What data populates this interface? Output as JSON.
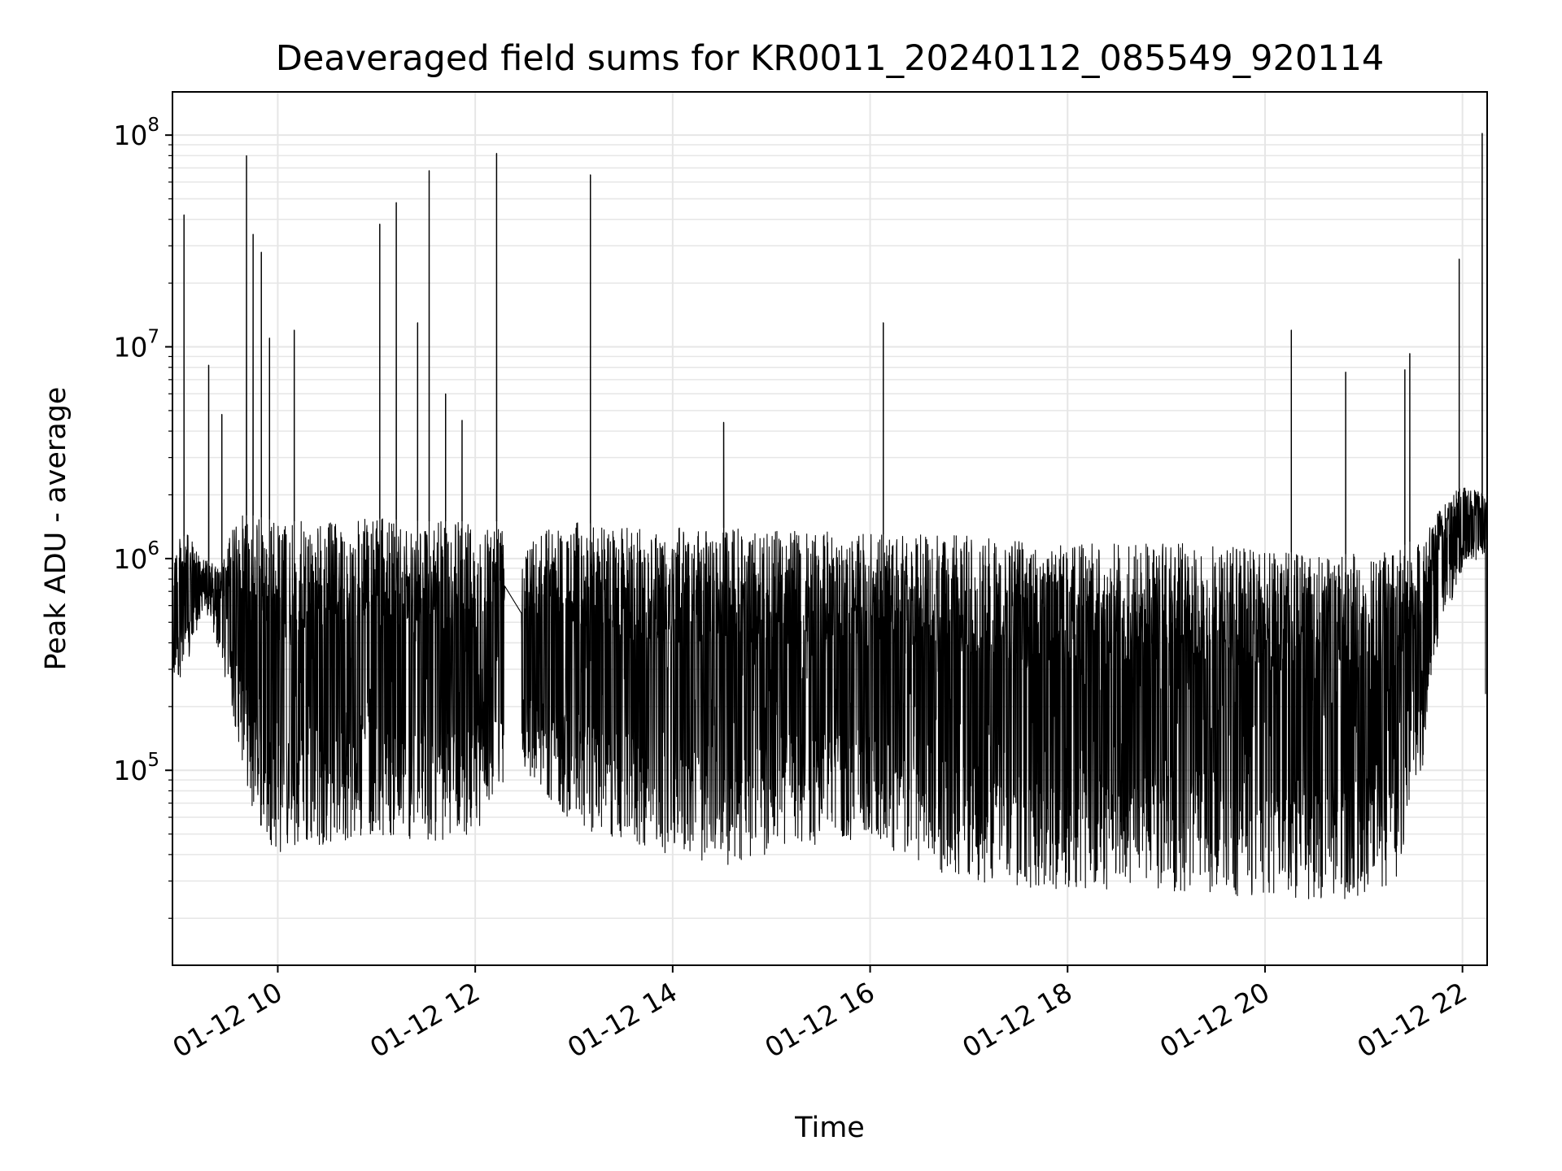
{
  "chart_data": {
    "type": "line",
    "title": "Deaveraged field sums for KR0011_20240112_085549_920114",
    "xlabel": "Time",
    "ylabel": "Peak ADU - average",
    "y_scale": "log",
    "ylim": [
      12000,
      160000000
    ],
    "x_domain": [
      "2024-01-12T08:56",
      "2024-01-12T22:15"
    ],
    "x_ticks": [
      {
        "t": "2024-01-12T10:00",
        "label": "01-12 10"
      },
      {
        "t": "2024-01-12T12:00",
        "label": "01-12 12"
      },
      {
        "t": "2024-01-12T14:00",
        "label": "01-12 14"
      },
      {
        "t": "2024-01-12T16:00",
        "label": "01-12 16"
      },
      {
        "t": "2024-01-12T18:00",
        "label": "01-12 18"
      },
      {
        "t": "2024-01-12T20:00",
        "label": "01-12 20"
      },
      {
        "t": "2024-01-12T22:00",
        "label": "01-12 22"
      }
    ],
    "y_ticks": [
      {
        "value": 100000,
        "base": "10",
        "exp": "5"
      },
      {
        "value": 1000000,
        "base": "10",
        "exp": "6"
      },
      {
        "value": 10000000,
        "base": "10",
        "exp": "7"
      },
      {
        "value": 100000000,
        "base": "10",
        "exp": "8"
      }
    ],
    "grid": true,
    "line_color": "#000000",
    "grid_color": "#e6e6e6",
    "envelope": [
      {
        "t": "2024-01-12T08:56",
        "low": 250000,
        "high": 1200000
      },
      {
        "t": "2024-01-12T09:05",
        "low": 300000,
        "high": 1300000
      },
      {
        "t": "2024-01-12T09:15",
        "low": 600000,
        "high": 1000000
      },
      {
        "t": "2024-01-12T09:25",
        "low": 350000,
        "high": 900000
      },
      {
        "t": "2024-01-12T09:35",
        "low": 150000,
        "high": 1600000
      },
      {
        "t": "2024-01-12T09:45",
        "low": 60000,
        "high": 1600000
      },
      {
        "t": "2024-01-12T10:00",
        "low": 40000,
        "high": 1500000
      },
      {
        "t": "2024-01-12T10:30",
        "low": 45000,
        "high": 1500000
      },
      {
        "t": "2024-01-12T11:00",
        "low": 50000,
        "high": 1550000
      },
      {
        "t": "2024-01-12T11:30",
        "low": 45000,
        "high": 1500000
      },
      {
        "t": "2024-01-12T12:00",
        "low": 50000,
        "high": 1500000
      },
      {
        "t": "2024-01-12T12:18",
        "low": 90000,
        "high": 1500000
      },
      {
        "t": "2024-01-12T12:30",
        "low": 100000,
        "high": 1400000
      },
      {
        "t": "2024-01-12T13:00",
        "low": 55000,
        "high": 1500000
      },
      {
        "t": "2024-01-12T13:30",
        "low": 45000,
        "high": 1400000
      },
      {
        "t": "2024-01-12T14:00",
        "low": 40000,
        "high": 1400000
      },
      {
        "t": "2024-01-12T14:30",
        "low": 35000,
        "high": 1400000
      },
      {
        "t": "2024-01-12T15:00",
        "low": 40000,
        "high": 1350000
      },
      {
        "t": "2024-01-12T15:30",
        "low": 45000,
        "high": 1350000
      },
      {
        "t": "2024-01-12T16:00",
        "low": 45000,
        "high": 1300000
      },
      {
        "t": "2024-01-12T16:30",
        "low": 35000,
        "high": 1300000
      },
      {
        "t": "2024-01-12T17:00",
        "low": 30000,
        "high": 1300000
      },
      {
        "t": "2024-01-12T17:30",
        "low": 28000,
        "high": 1250000
      },
      {
        "t": "2024-01-12T18:00",
        "low": 27000,
        "high": 1200000
      },
      {
        "t": "2024-01-12T18:30",
        "low": 27000,
        "high": 1200000
      },
      {
        "t": "2024-01-12T19:00",
        "low": 27000,
        "high": 1200000
      },
      {
        "t": "2024-01-12T19:30",
        "low": 26000,
        "high": 1150000
      },
      {
        "t": "2024-01-12T20:00",
        "low": 25000,
        "high": 1100000
      },
      {
        "t": "2024-01-12T20:30",
        "low": 24000,
        "high": 1050000
      },
      {
        "t": "2024-01-12T21:00",
        "low": 25000,
        "high": 1050000
      },
      {
        "t": "2024-01-12T21:20",
        "low": 30000,
        "high": 1100000
      },
      {
        "t": "2024-01-12T21:35",
        "low": 90000,
        "high": 1300000
      },
      {
        "t": "2024-01-12T21:45",
        "low": 400000,
        "high": 1800000
      },
      {
        "t": "2024-01-12T22:00",
        "low": 900000,
        "high": 2200000
      },
      {
        "t": "2024-01-12T22:15",
        "low": 1000000,
        "high": 2000000
      }
    ],
    "gap": [
      "2024-01-12T12:18",
      "2024-01-12T12:28"
    ],
    "spikes": [
      {
        "t": "2024-01-12T09:03",
        "value": 42000000
      },
      {
        "t": "2024-01-12T09:18",
        "value": 8200000
      },
      {
        "t": "2024-01-12T09:26",
        "value": 4800000
      },
      {
        "t": "2024-01-12T09:41",
        "value": 80000000
      },
      {
        "t": "2024-01-12T09:45",
        "value": 34000000
      },
      {
        "t": "2024-01-12T09:50",
        "value": 28000000
      },
      {
        "t": "2024-01-12T09:55",
        "value": 11000000
      },
      {
        "t": "2024-01-12T10:10",
        "value": 12000000
      },
      {
        "t": "2024-01-12T11:02",
        "value": 38000000
      },
      {
        "t": "2024-01-12T11:12",
        "value": 48000000
      },
      {
        "t": "2024-01-12T11:25",
        "value": 13000000
      },
      {
        "t": "2024-01-12T11:32",
        "value": 68000000
      },
      {
        "t": "2024-01-12T11:42",
        "value": 6000000
      },
      {
        "t": "2024-01-12T11:52",
        "value": 4500000
      },
      {
        "t": "2024-01-12T12:13",
        "value": 82000000
      },
      {
        "t": "2024-01-12T13:10",
        "value": 65000000
      },
      {
        "t": "2024-01-12T14:31",
        "value": 4400000
      },
      {
        "t": "2024-01-12T16:08",
        "value": 13000000
      },
      {
        "t": "2024-01-12T20:16",
        "value": 12000000
      },
      {
        "t": "2024-01-12T20:49",
        "value": 7600000
      },
      {
        "t": "2024-01-12T21:25",
        "value": 7800000
      },
      {
        "t": "2024-01-12T21:28",
        "value": 9300000
      },
      {
        "t": "2024-01-12T21:58",
        "value": 26000000
      },
      {
        "t": "2024-01-12T22:12",
        "value": 102000000
      },
      {
        "t": "2024-01-12T22:14",
        "value": 230000
      }
    ]
  }
}
